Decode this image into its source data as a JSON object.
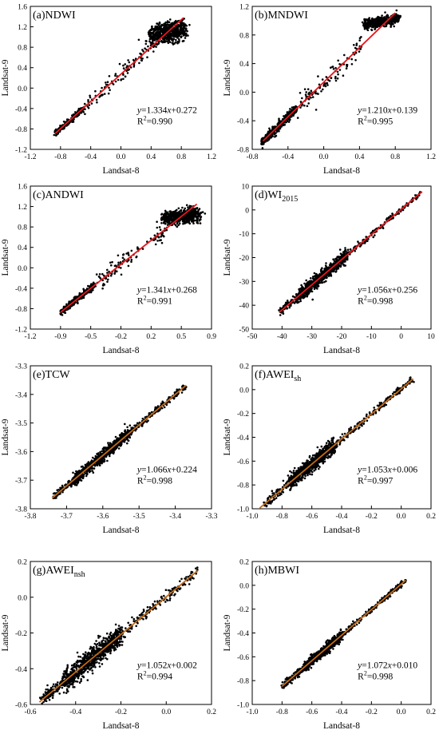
{
  "figure": {
    "common_xlabel": "Landsat-8",
    "common_ylabel": "Landsat-9"
  },
  "chart_data": [
    {
      "type": "scatter",
      "title": "(a)NDWI",
      "title_sub": "",
      "xlabel": "Landsat-8",
      "ylabel": "Landsat-9",
      "xlim": [
        -1.2,
        1.2
      ],
      "ylim": [
        -1.2,
        1.6
      ],
      "xticks": [
        "-1.2",
        "-0.8",
        "-0.4",
        "0.0",
        "0.4",
        "0.8",
        "1.2"
      ],
      "yticks": [
        "-1.2",
        "-0.8",
        "-0.4",
        "0.0",
        "0.4",
        "0.8",
        "1.2",
        "1.6"
      ],
      "fit": {
        "slope": 1.334,
        "intercept": 0.272,
        "x_range": [
          -0.87,
          0.83
        ]
      },
      "equation": {
        "y": "y",
        "rest": "=1.334",
        "x": "x",
        "tail": "+0.272"
      },
      "r2_label": "R",
      "r2_sup": "2",
      "r2_value": "=0.990",
      "line_color": "#e8161b",
      "clusters": [
        {
          "x": [
            -0.87,
            -0.5
          ],
          "noise": 0.025,
          "n": 320
        },
        {
          "x": [
            -0.5,
            0.45
          ],
          "noise": 0.07,
          "n": 110
        },
        {
          "x": [
            0.4,
            0.83
          ],
          "noise": 0.18,
          "n": 600,
          "y_center": 1.08
        }
      ]
    },
    {
      "type": "scatter",
      "title": "(b)MNDWI",
      "title_sub": "",
      "xlabel": "Landsat-8",
      "ylabel": "Landsat-9",
      "xlim": [
        -0.8,
        1.2
      ],
      "ylim": [
        -0.8,
        1.2
      ],
      "xticks": [
        "-0.8",
        "-0.4",
        "0.0",
        "0.4",
        "0.8",
        "1.2"
      ],
      "yticks": [
        "-0.8",
        "-0.4",
        "0.0",
        "0.4",
        "0.8",
        "1.2"
      ],
      "fit": {
        "slope": 1.21,
        "intercept": 0.139,
        "x_range": [
          -0.68,
          0.8
        ]
      },
      "equation": {
        "y": "y",
        "rest": "=1.210",
        "x": "x",
        "tail": "+0.139"
      },
      "r2_label": "R",
      "r2_sup": "2",
      "r2_value": "=0.995",
      "line_color": "#e8161b",
      "clusters": [
        {
          "x": [
            -0.7,
            -0.3
          ],
          "noise": 0.03,
          "n": 380
        },
        {
          "x": [
            -0.3,
            0.45
          ],
          "noise": 0.07,
          "n": 110
        },
        {
          "x": [
            0.45,
            0.84
          ],
          "noise": 0.06,
          "n": 520,
          "y_center": 0.99
        }
      ]
    },
    {
      "type": "scatter",
      "title": "(c)ANDWI",
      "title_sub": "",
      "xlabel": "Landsat-8",
      "ylabel": "Landsat-9",
      "xlim": [
        -1.2,
        0.9
      ],
      "ylim": [
        -1.2,
        1.6
      ],
      "xticks": [
        "-1.2",
        "-0.9",
        "-0.5",
        "-0.2",
        "0.2",
        "0.5",
        "0.9"
      ],
      "yticks": [
        "-1.2",
        "-0.8",
        "-0.4",
        "0.0",
        "0.4",
        "0.8",
        "1.2",
        "1.6"
      ],
      "fit": {
        "slope": 1.341,
        "intercept": 0.268,
        "x_range": [
          -0.85,
          0.73
        ]
      },
      "equation": {
        "y": "y",
        "rest": "=1.341",
        "x": "x",
        "tail": "+0.268"
      },
      "r2_label": "R",
      "r2_sup": "2",
      "r2_value": "=0.991",
      "line_color": "#e8161b",
      "clusters": [
        {
          "x": [
            -0.85,
            -0.45
          ],
          "noise": 0.03,
          "n": 320
        },
        {
          "x": [
            -0.45,
            0.35
          ],
          "noise": 0.08,
          "n": 110
        },
        {
          "x": [
            0.35,
            0.75
          ],
          "noise": 0.13,
          "n": 560,
          "y_center": 1.0
        }
      ]
    },
    {
      "type": "scatter",
      "title": "(d)WI",
      "title_sub": "2015",
      "xlabel": "Landsat-8",
      "ylabel": "Landsat-9",
      "xlim": [
        -50,
        10
      ],
      "ylim": [
        -50,
        10
      ],
      "xticks": [
        "-50",
        "-40",
        "-30",
        "-20",
        "-10",
        "0",
        "10"
      ],
      "yticks": [
        "-50",
        "-40",
        "-30",
        "-20",
        "-10",
        "0",
        "10"
      ],
      "fit": {
        "slope": 1.056,
        "intercept": 0.256,
        "x_range": [
          -41,
          7
        ]
      },
      "equation": {
        "y": "y",
        "rest": "=1.056",
        "x": "x",
        "tail": "+0.256"
      },
      "r2_label": "R",
      "r2_sup": "2",
      "r2_value": "=0.998",
      "line_color": "#e8161b",
      "clusters": [
        {
          "x": [
            -41,
            -35
          ],
          "noise": 0.9,
          "n": 60
        },
        {
          "x": [
            -35,
            -18
          ],
          "noise": 1.3,
          "n": 800
        },
        {
          "x": [
            -18,
            7
          ],
          "noise": 0.6,
          "n": 160
        }
      ]
    },
    {
      "type": "scatter",
      "title": "(e)TCW",
      "title_sub": "",
      "xlabel": "Landsat-8",
      "ylabel": "Landsat-9",
      "xlim": [
        -3.8,
        -3.3
      ],
      "ylim": [
        -3.8,
        -3.3
      ],
      "xticks": [
        "-3.8",
        "-3.7",
        "-3.6",
        "-3.5",
        "-3.4",
        "-3.3"
      ],
      "yticks": [
        "-3.8",
        "-3.7",
        "-3.6",
        "-3.5",
        "-3.4",
        "-3.3"
      ],
      "fit": {
        "slope": 1.066,
        "intercept": 0.224,
        "x_range": [
          -3.74,
          -3.37
        ]
      },
      "equation": {
        "y": "y",
        "rest": "=1.066",
        "x": "x",
        "tail": "+0.224"
      },
      "r2_label": "R",
      "r2_sup": "2",
      "r2_value": "=0.998",
      "line_color": "#c26a14",
      "clusters": [
        {
          "x": [
            -3.74,
            -3.68
          ],
          "noise": 0.006,
          "n": 80
        },
        {
          "x": [
            -3.68,
            -3.52
          ],
          "noise": 0.01,
          "n": 800
        },
        {
          "x": [
            -3.52,
            -3.37
          ],
          "noise": 0.006,
          "n": 180
        }
      ]
    },
    {
      "type": "scatter",
      "title": "(f)AWEI",
      "title_sub": "sh",
      "xlabel": "Landsat-8",
      "ylabel": "Landsat-9",
      "xlim": [
        -1.0,
        0.2
      ],
      "ylim": [
        -1.0,
        0.2
      ],
      "xticks": [
        "-1.0",
        "-0.8",
        "-0.6",
        "-0.4",
        "-0.2",
        "0.0",
        "0.2"
      ],
      "yticks": [
        "-1.0",
        "-0.8",
        "-0.6",
        "-0.4",
        "-0.2",
        "0.0",
        "0.2"
      ],
      "fit": {
        "slope": 1.053,
        "intercept": 0.006,
        "x_range": [
          -0.95,
          0.08
        ]
      },
      "equation": {
        "y": "y",
        "rest": "=1.053",
        "x": "x",
        "tail": "+0.006"
      },
      "r2_label": "R",
      "r2_sup": "2",
      "r2_value": "=0.997",
      "line_color": "#c26a14",
      "clusters": [
        {
          "x": [
            -0.92,
            -0.75
          ],
          "noise": 0.02,
          "n": 80
        },
        {
          "x": [
            -0.75,
            -0.45
          ],
          "noise": 0.03,
          "n": 750
        },
        {
          "x": [
            -0.45,
            0.08
          ],
          "noise": 0.015,
          "n": 200
        }
      ]
    },
    {
      "type": "scatter",
      "title": "(g)AWEI",
      "title_sub": "nsh",
      "xlabel": "Landsat-8",
      "ylabel": "Landsat-9",
      "xlim": [
        -0.6,
        0.2
      ],
      "ylim": [
        -0.6,
        0.2
      ],
      "xticks": [
        "-0.6",
        "-0.4",
        "-0.2",
        "0.0",
        "0.2"
      ],
      "yticks": [
        "-0.6",
        "-0.4",
        "-0.2",
        "0.0",
        "0.2"
      ],
      "fit": {
        "slope": 1.052,
        "intercept": 0.002,
        "x_range": [
          -0.56,
          0.14
        ]
      },
      "equation": {
        "y": "y",
        "rest": "=1.052",
        "x": "x",
        "tail": "+0.002"
      },
      "r2_label": "R",
      "r2_sup": "2",
      "r2_value": "=0.994",
      "line_color": "#c26a14",
      "clusters": [
        {
          "x": [
            -0.55,
            -0.45
          ],
          "noise": 0.015,
          "n": 120
        },
        {
          "x": [
            -0.45,
            -0.2
          ],
          "noise": 0.03,
          "n": 800
        },
        {
          "x": [
            -0.2,
            0.14
          ],
          "noise": 0.015,
          "n": 160
        }
      ]
    },
    {
      "type": "scatter",
      "title": "(h)MBWI",
      "title_sub": "",
      "xlabel": "Landsat-8",
      "ylabel": "Landsat-9",
      "xlim": [
        -1.0,
        0.2
      ],
      "ylim": [
        -1.0,
        0.2
      ],
      "xticks": [
        "-1.0",
        "-0.8",
        "-0.6",
        "-0.4",
        "-0.2",
        "0.0",
        "0.2"
      ],
      "yticks": [
        "-1.0",
        "-0.8",
        "-0.6",
        "-0.4",
        "-0.2",
        "0.0",
        "0.2"
      ],
      "fit": {
        "slope": 1.072,
        "intercept": 0.01,
        "x_range": [
          -0.8,
          0.03
        ]
      },
      "equation": {
        "y": "y",
        "rest": "=1.072",
        "x": "x",
        "tail": "+0.010"
      },
      "r2_label": "R",
      "r2_sup": "2",
      "r2_value": "=0.998",
      "line_color": "#c26a14",
      "clusters": [
        {
          "x": [
            -0.8,
            -0.65
          ],
          "noise": 0.015,
          "n": 120
        },
        {
          "x": [
            -0.65,
            -0.4
          ],
          "noise": 0.02,
          "n": 700
        },
        {
          "x": [
            -0.4,
            0.03
          ],
          "noise": 0.012,
          "n": 200
        }
      ]
    }
  ]
}
